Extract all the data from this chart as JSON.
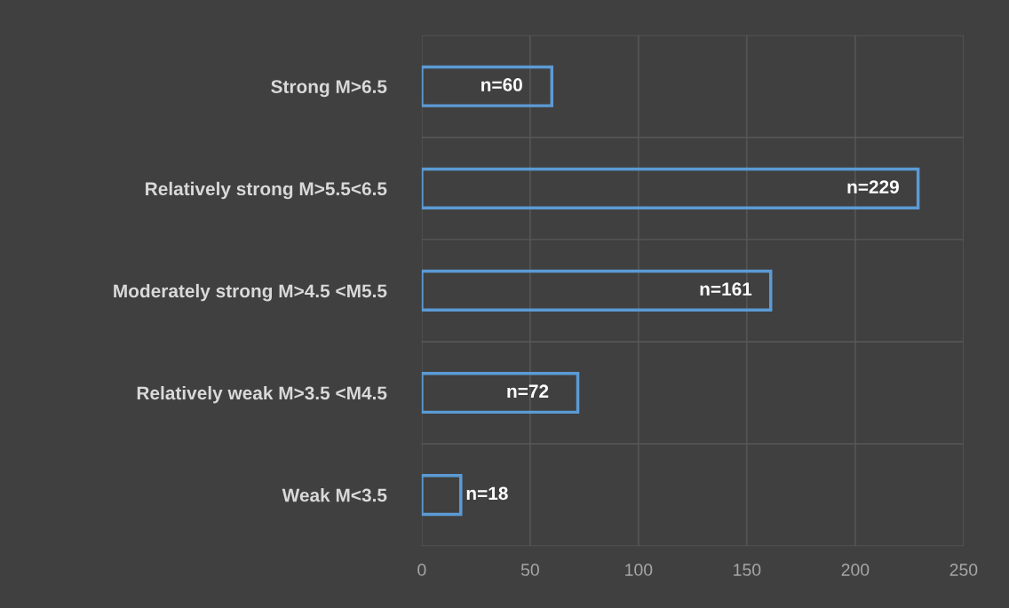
{
  "chart_data": {
    "type": "bar",
    "orientation": "horizontal",
    "categories": [
      "Strong M>6.5",
      "Relatively strong M>5.5<6.5",
      "Moderately strong M>4.5 <M5.5",
      "Relatively weak M>3.5 <M4.5",
      "Weak M<3.5"
    ],
    "values": [
      60,
      229,
      161,
      72,
      18
    ],
    "value_labels": [
      "n=60",
      "n=229",
      "n=161",
      "n=72",
      "n=18"
    ],
    "color": "#5b9bd5",
    "xlim": [
      0,
      250
    ],
    "xticks": [
      0,
      50,
      100,
      150,
      200,
      250
    ],
    "grid": true
  }
}
